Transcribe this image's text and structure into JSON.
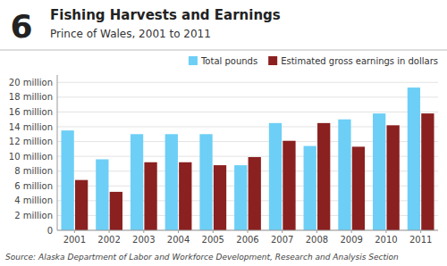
{
  "chart_data": {
    "type": "bar",
    "title": "Fishing Harvests and Earnings",
    "subtitle": "Prince of Wales, 2001 to 2011",
    "annotations": [
      "6",
      "Source: Alaska Department of Labor and Workforce Development, Research and Analysis Section"
    ],
    "categories": [
      "2001",
      "2002",
      "2003",
      "2004",
      "2005",
      "2006",
      "2007",
      "2008",
      "2009",
      "2010",
      "2011"
    ],
    "series": [
      {
        "name": "Total pounds",
        "color": "#6DCFF6",
        "values": [
          13.5,
          9.6,
          13.0,
          13.0,
          13.0,
          8.8,
          14.5,
          11.4,
          15.0,
          15.8,
          19.3
        ]
      },
      {
        "name": "Estimated gross earnings in dollars",
        "color": "#8B2020",
        "values": [
          6.8,
          5.2,
          9.2,
          9.2,
          8.8,
          9.9,
          12.1,
          14.5,
          11.3,
          14.2,
          15.8
        ]
      }
    ],
    "ylim": [
      0,
      21
    ],
    "yticks": [
      0,
      {
        "value": 2,
        "label": "2 million"
      },
      {
        "value": 4,
        "label": "4 million"
      },
      {
        "value": 6,
        "label": "6 million"
      },
      {
        "value": 8,
        "label": "8 million"
      },
      {
        "value": 10,
        "label": "10 million"
      },
      {
        "value": 12,
        "label": "12 million"
      },
      {
        "value": 14,
        "label": "14 million"
      },
      {
        "value": 16,
        "label": "16 million"
      },
      {
        "value": 18,
        "label": "18 million"
      },
      {
        "value": 20,
        "label": "20 million"
      }
    ],
    "grid": true,
    "legend": "upper right"
  }
}
